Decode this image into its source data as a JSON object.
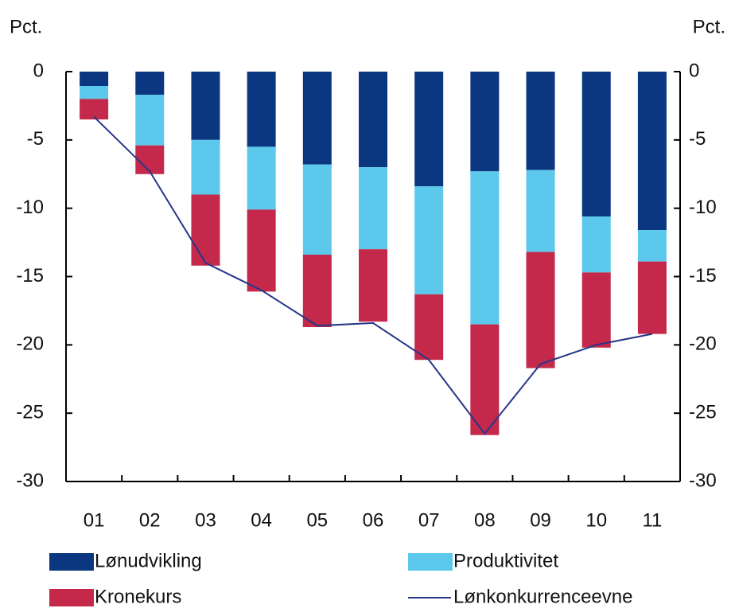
{
  "chart_data": {
    "type": "bar",
    "stacked": true,
    "y_label": "Pct.",
    "y2_label": "Pct.",
    "categories": [
      "01",
      "02",
      "03",
      "04",
      "05",
      "06",
      "07",
      "08",
      "09",
      "10",
      "11"
    ],
    "series": [
      {
        "name": "Lønudvikling",
        "color": "#0b3680",
        "type": "bar",
        "values": [
          -1.05,
          -1.7,
          -5.0,
          -5.5,
          -6.8,
          -7.0,
          -8.4,
          -7.3,
          -7.2,
          -10.6,
          -11.6
        ]
      },
      {
        "name": "Produktivitet",
        "color": "#5bc8ec",
        "type": "bar",
        "values": [
          -0.95,
          -3.7,
          -4.0,
          -4.6,
          -6.6,
          -6.0,
          -7.9,
          -11.2,
          -6.0,
          -4.1,
          -2.3
        ]
      },
      {
        "name": "Kronekurs",
        "color": "#c4284a",
        "type": "bar",
        "values": [
          -1.5,
          -2.1,
          -5.2,
          -6.0,
          -5.3,
          -5.3,
          -4.8,
          -8.1,
          -8.5,
          -5.5,
          -5.3
        ]
      },
      {
        "name": "Lønkonkurrenceevne",
        "color": "#27368a",
        "type": "line",
        "values": [
          -3.3,
          -7.3,
          -14.0,
          -16.0,
          -18.6,
          -18.4,
          -21.1,
          -26.5,
          -21.4,
          -20.0,
          -19.2
        ]
      }
    ],
    "ylim": [
      -30,
      0
    ],
    "yticks": [
      0,
      -5,
      -10,
      -15,
      -20,
      -25,
      -30
    ],
    "y2lim": [
      -30,
      0
    ],
    "y2ticks": [
      0,
      -5,
      -10,
      -15,
      -20,
      -25,
      -30
    ],
    "grid": false
  }
}
